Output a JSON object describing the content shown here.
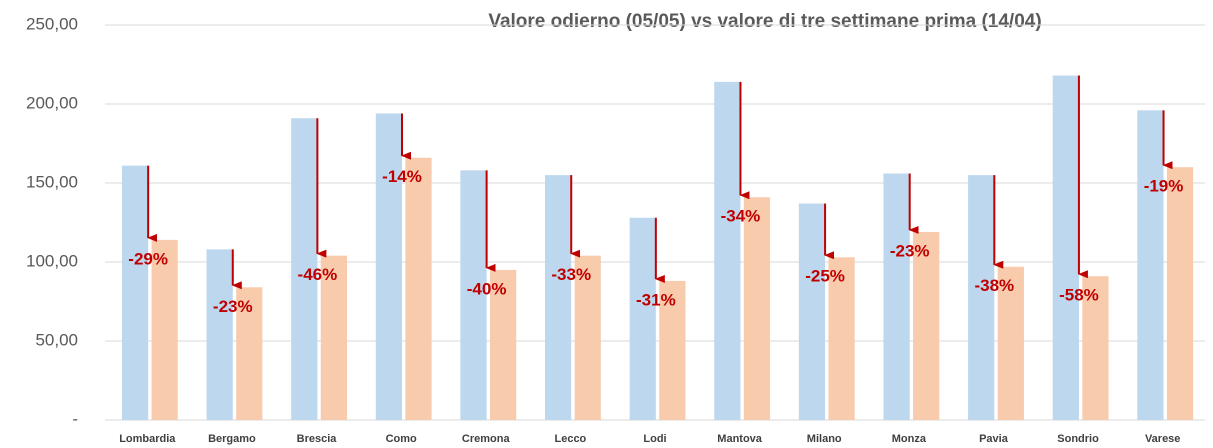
{
  "chart_data": {
    "type": "bar",
    "title": "Valore odierno (05/05) vs valore di tre settimane prima (14/04)",
    "categories": [
      "Lombardia",
      "Bergamo",
      "Brescia",
      "Como",
      "Cremona",
      "Lecco",
      "Lodi",
      "Mantova",
      "Milano",
      "Monza",
      "Pavia",
      "Sondrio",
      "Varese"
    ],
    "series": [
      {
        "color": "#bdd7ee",
        "values": [
          161,
          108,
          191,
          194,
          158,
          155,
          128,
          214,
          137,
          156,
          155,
          218,
          196
        ]
      },
      {
        "color": "#f8cbad",
        "values": [
          114,
          84,
          104,
          166,
          95,
          104,
          88,
          141,
          103,
          119,
          97,
          91,
          160
        ]
      }
    ],
    "changes": {
      "color": "#c00000",
      "values": [
        -29,
        -23,
        -46,
        -14,
        -40,
        -33,
        -31,
        -34,
        -25,
        -23,
        -38,
        -58,
        -19
      ],
      "value_labels": [
        "-29%",
        "-23%",
        "-46%",
        "-14%",
        "-40%",
        "-33%",
        "-31%",
        "-34%",
        "-25%",
        "-23%",
        "-38%",
        "-58%",
        "-19%"
      ]
    },
    "ylim": [
      0,
      250
    ],
    "yticks": [
      {
        "value": 0,
        "label": "-"
      },
      {
        "value": 50,
        "label": "50,00"
      },
      {
        "value": 100,
        "label": "100,00"
      },
      {
        "value": 150,
        "label": "150,00"
      },
      {
        "value": 200,
        "label": "200,00"
      },
      {
        "value": 250,
        "label": "250,00"
      }
    ],
    "grid": true
  }
}
